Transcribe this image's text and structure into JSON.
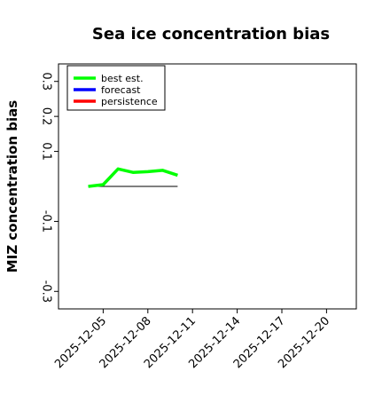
{
  "chart_data": {
    "type": "line",
    "title": "Sea ice concentration bias",
    "xlabel": "",
    "ylabel": "MIZ concentration bias",
    "ylim": [
      -0.35,
      0.35
    ],
    "yticks": [
      -0.3,
      -0.1,
      0.1,
      0.2,
      0.3
    ],
    "ytick_labels": [
      "-0.3",
      "-0.1",
      "0.1",
      "0.2",
      "0.3"
    ],
    "xlim": [
      "2025-12-02",
      "2025-12-22"
    ],
    "xticks": [
      "2025-12-05",
      "2025-12-08",
      "2025-12-11",
      "2025-12-14",
      "2025-12-17",
      "2025-12-20"
    ],
    "highlighted_xtick": "2025-12-11",
    "highlight_color": "#228B22",
    "grid": false,
    "legend_position": "top-left",
    "series": [
      {
        "name": "best est.",
        "color": "#00ff00",
        "x": [
          "2025-12-04",
          "2025-12-05",
          "2025-12-06",
          "2025-12-07",
          "2025-12-08",
          "2025-12-09",
          "2025-12-10"
        ],
        "y": [
          0.0,
          0.005,
          0.05,
          0.04,
          0.042,
          0.046,
          0.032
        ]
      },
      {
        "name": "forecast",
        "color": "#0000ff",
        "x": [],
        "y": []
      },
      {
        "name": "persistence",
        "color": "#ff0000",
        "x": [],
        "y": []
      }
    ],
    "reference_line": {
      "y": 0.0,
      "x": [
        "2025-12-04",
        "2025-12-10"
      ],
      "color": "#000000"
    }
  }
}
